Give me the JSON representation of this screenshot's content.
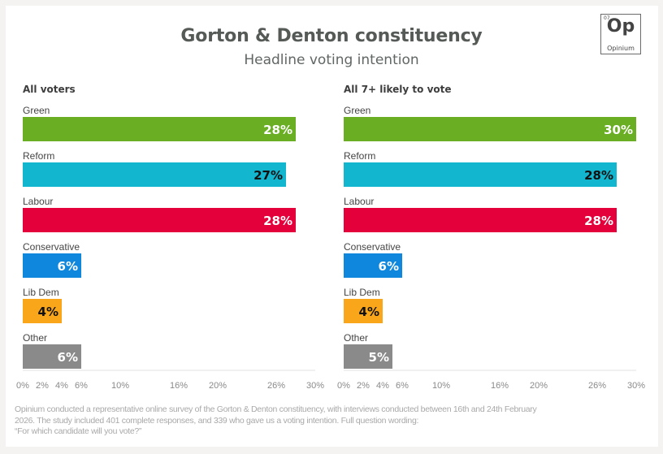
{
  "header": {
    "title": "Gorton & Denton constituency",
    "subtitle": "Headline voting intention"
  },
  "logo": {
    "number": "07",
    "symbol": "Op",
    "name": "Opinium"
  },
  "colors": {
    "Green": "#6aaf23",
    "Reform": "#12b6cf",
    "Labour": "#e4003b",
    "Conservative": "#0f87dc",
    "Lib Dem": "#faa61a",
    "Other": "#8a8a8a"
  },
  "label_colors": {
    "Green": "#ffffff",
    "Reform": "#111111",
    "Labour": "#ffffff",
    "Conservative": "#ffffff",
    "Lib Dem": "#111111",
    "Other": "#ffffff"
  },
  "chart_data": [
    {
      "type": "bar",
      "orientation": "horizontal",
      "title": "All voters",
      "categories": [
        "Green",
        "Reform",
        "Labour",
        "Conservative",
        "Lib Dem",
        "Other"
      ],
      "values": [
        28,
        27,
        28,
        6,
        4,
        6
      ],
      "value_labels": [
        "28%",
        "27%",
        "28%",
        "6%",
        "4%",
        "6%"
      ],
      "xlim": [
        0,
        30
      ],
      "xticks": [
        0,
        2,
        4,
        6,
        10,
        16,
        20,
        26,
        30
      ],
      "xtick_labels": [
        "0%",
        "2%",
        "4%",
        "6%",
        "10%",
        "16%",
        "20%",
        "26%",
        "30%"
      ],
      "grid": false
    },
    {
      "type": "bar",
      "orientation": "horizontal",
      "title": "All 7+ likely to vote",
      "categories": [
        "Green",
        "Reform",
        "Labour",
        "Conservative",
        "Lib Dem",
        "Other"
      ],
      "values": [
        30,
        28,
        28,
        6,
        4,
        5
      ],
      "value_labels": [
        "30%",
        "28%",
        "28%",
        "6%",
        "4%",
        "5%"
      ],
      "xlim": [
        0,
        30
      ],
      "xticks": [
        0,
        2,
        4,
        6,
        10,
        16,
        20,
        26,
        30
      ],
      "xtick_labels": [
        "0%",
        "2%",
        "4%",
        "6%",
        "10%",
        "16%",
        "20%",
        "26%",
        "30%"
      ],
      "grid": false
    }
  ],
  "footnote": {
    "line1": "Opinium conducted a representative online survey of the Gorton & Denton constituency, with interviews conducted between 16th and 24th February",
    "line2": "2026. The study included 401 complete responses, and 339 who gave us a voting intention. Full question wording:",
    "line3": "“For which candidate will you vote?”"
  }
}
